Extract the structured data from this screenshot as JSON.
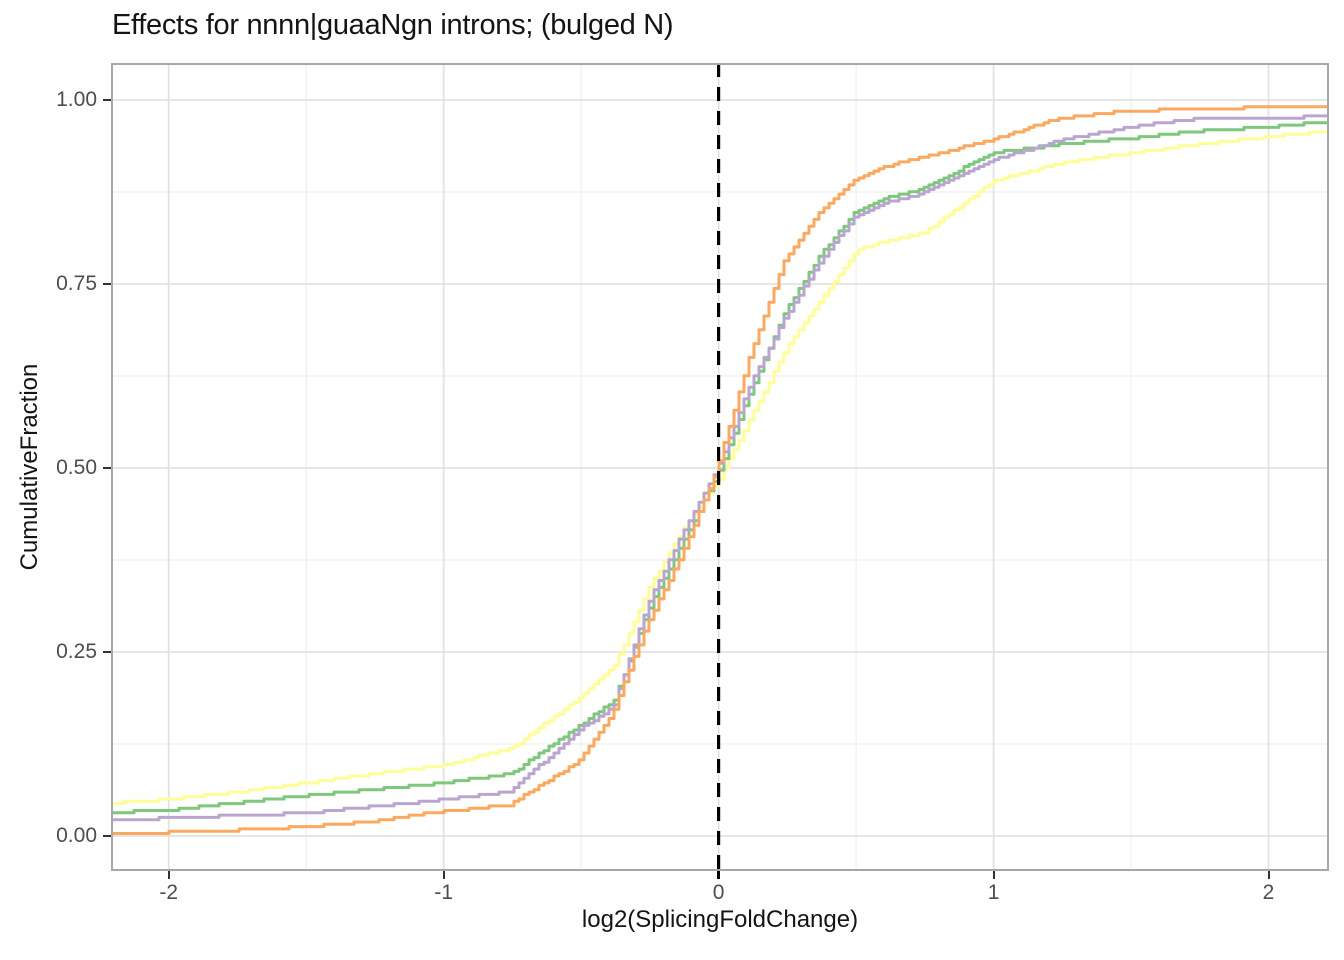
{
  "chart_data": {
    "type": "line",
    "subtype": "ecdf",
    "title": "Effects for nnnn|guaaNgn introns; (bulged N)",
    "xlabel": "log2(SplicingFoldChange)",
    "ylabel": "CumulativeFraction",
    "xlim": [
      -2.21,
      2.22
    ],
    "ylim": [
      -0.048,
      1.05
    ],
    "grid": true,
    "legend_position": "none",
    "x_ticks": [
      -2,
      -1,
      0,
      1,
      2
    ],
    "x_tick_labels": [
      "-2",
      "-1",
      "0",
      "1",
      "2"
    ],
    "y_ticks": [
      0,
      0.25,
      0.5,
      0.75,
      1
    ],
    "y_tick_labels": [
      "0.00",
      "0.25",
      "0.50",
      "0.75",
      "1.00"
    ],
    "x_minor_ticks": [
      -1.5,
      -0.5,
      0.5,
      1.5
    ],
    "y_minor_ticks": [
      0.125,
      0.375,
      0.625,
      0.875
    ],
    "vline": {
      "x": 0,
      "style": "dashed",
      "color": "#000000"
    },
    "x": [
      -2.2,
      -2.0,
      -1.75,
      -1.5,
      -1.25,
      -1.0,
      -0.75,
      -0.5,
      -0.375,
      -0.25,
      -0.125,
      0,
      0.125,
      0.25,
      0.375,
      0.5,
      0.625,
      0.75,
      1.0,
      1.25,
      1.5,
      1.75,
      2.0,
      2.2
    ],
    "series": [
      {
        "name": "yellow-curve",
        "color": "#FDFD9A",
        "values": [
          0.045,
          0.05,
          0.06,
          0.072,
          0.085,
          0.096,
          0.12,
          0.19,
          0.235,
          0.34,
          0.42,
          0.485,
          0.575,
          0.665,
          0.73,
          0.796,
          0.81,
          0.82,
          0.89,
          0.915,
          0.928,
          0.94,
          0.95,
          0.957
        ]
      },
      {
        "name": "green-curve",
        "color": "#7EC77C",
        "values": [
          0.032,
          0.035,
          0.045,
          0.055,
          0.063,
          0.072,
          0.085,
          0.15,
          0.185,
          0.31,
          0.4,
          0.49,
          0.61,
          0.715,
          0.79,
          0.848,
          0.868,
          0.88,
          0.928,
          0.94,
          0.948,
          0.958,
          0.963,
          0.97
        ]
      },
      {
        "name": "purple-curve",
        "color": "#B9A6CF",
        "values": [
          0.022,
          0.024,
          0.028,
          0.031,
          0.04,
          0.049,
          0.06,
          0.144,
          0.175,
          0.315,
          0.41,
          0.495,
          0.615,
          0.705,
          0.78,
          0.84,
          0.862,
          0.873,
          0.918,
          0.945,
          0.963,
          0.975,
          0.975,
          0.978
        ]
      },
      {
        "name": "orange-curve",
        "color": "#FBA960",
        "values": [
          0.002,
          0.005,
          0.008,
          0.012,
          0.02,
          0.033,
          0.042,
          0.1,
          0.165,
          0.285,
          0.38,
          0.49,
          0.65,
          0.78,
          0.845,
          0.89,
          0.91,
          0.922,
          0.945,
          0.975,
          0.985,
          0.988,
          0.99,
          0.992
        ]
      }
    ]
  },
  "style_colors": {
    "panel_border": "#a7a7a7",
    "grid_major": "#e2e2e2",
    "grid_minor": "#efefef",
    "tick_label": "#4d4d4d",
    "text": "#141414"
  }
}
